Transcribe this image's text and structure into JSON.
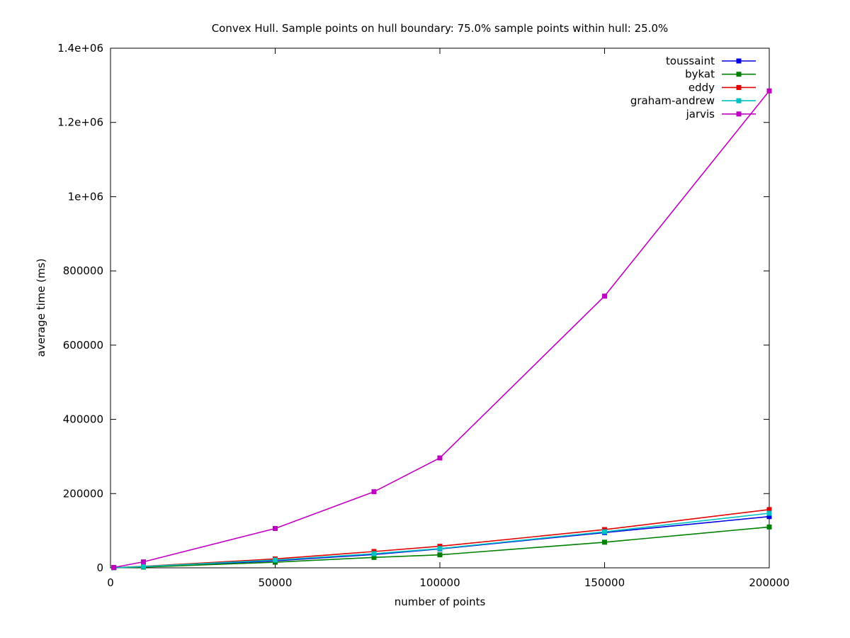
{
  "chart_data": {
    "type": "line",
    "title": "Convex Hull. Sample points on hull boundary: 75.0% sample points within hull: 25.0%",
    "xlabel": "number of points",
    "ylabel": "average time (ms)",
    "xlim": [
      0,
      200000
    ],
    "ylim": [
      0,
      1400000
    ],
    "x_ticks": [
      {
        "value": 0,
        "label": "0"
      },
      {
        "value": 50000,
        "label": "50000"
      },
      {
        "value": 100000,
        "label": "100000"
      },
      {
        "value": 150000,
        "label": "150000"
      },
      {
        "value": 200000,
        "label": "200000"
      }
    ],
    "y_ticks": [
      {
        "value": 0,
        "label": "0"
      },
      {
        "value": 200000,
        "label": "200000"
      },
      {
        "value": 400000,
        "label": "400000"
      },
      {
        "value": 600000,
        "label": "600000"
      },
      {
        "value": 800000,
        "label": "800000"
      },
      {
        "value": 1000000,
        "label": "1e+06"
      },
      {
        "value": 1200000,
        "label": "1.2e+06"
      },
      {
        "value": 1400000,
        "label": "1.4e+06"
      }
    ],
    "grid": false,
    "legend_position": "top-right",
    "marker": "square",
    "x": [
      1000,
      10000,
      50000,
      80000,
      100000,
      150000,
      200000
    ],
    "series": [
      {
        "name": "toussaint",
        "color": "#0000e0",
        "values": [
          300,
          3000,
          19000,
          36000,
          51000,
          95000,
          138000
        ]
      },
      {
        "name": "bykat",
        "color": "#007f00",
        "values": [
          200,
          2000,
          15000,
          28000,
          35000,
          69000,
          110000
        ]
      },
      {
        "name": "eddy",
        "color": "#e00000",
        "values": [
          400,
          4000,
          24000,
          44000,
          58000,
          103000,
          157000
        ]
      },
      {
        "name": "graham-andrew",
        "color": "#00c0c0",
        "values": [
          300,
          3500,
          21000,
          38000,
          52000,
          97000,
          147000
        ]
      },
      {
        "name": "jarvis",
        "color": "#c000c0",
        "values": [
          1000,
          16000,
          106000,
          205000,
          296000,
          732000,
          1285000
        ]
      }
    ]
  }
}
